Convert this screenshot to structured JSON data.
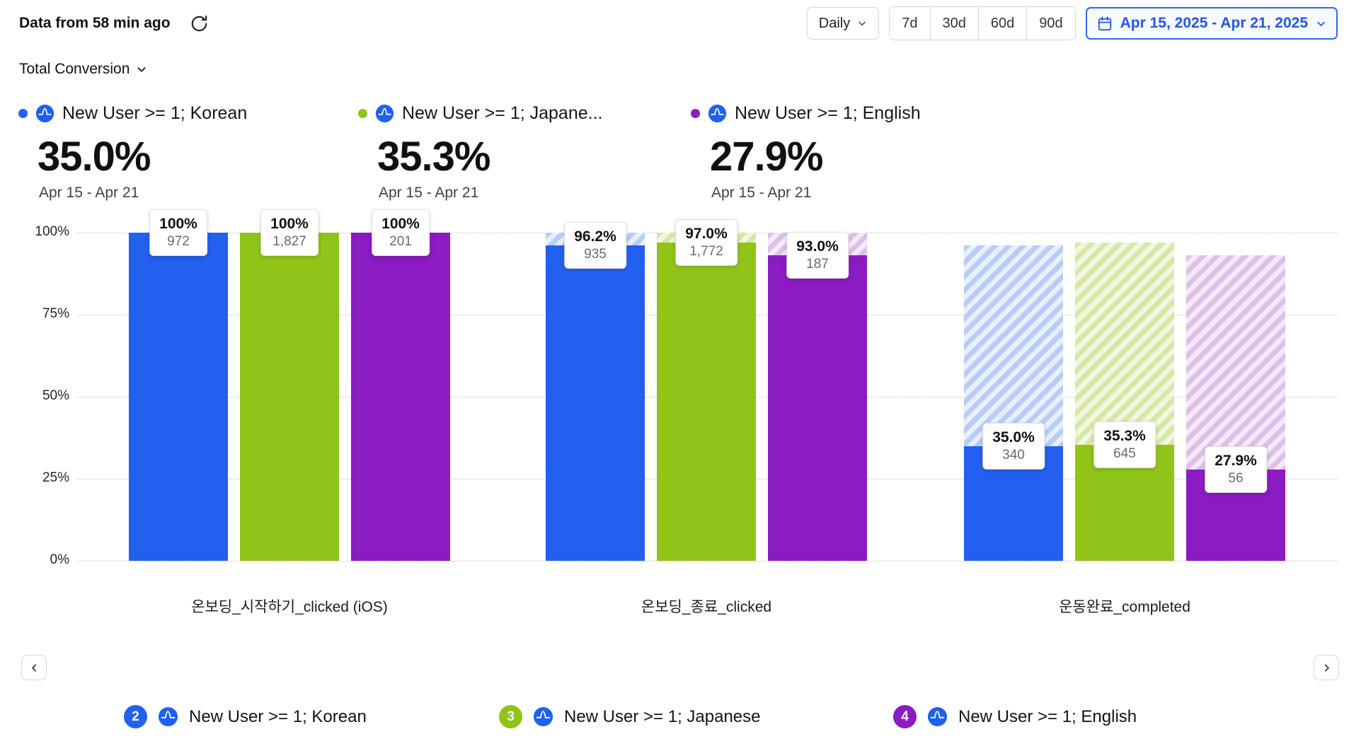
{
  "header": {
    "freshness": "Data from 58 min ago",
    "granularity": "Daily",
    "quick_ranges": [
      "7d",
      "30d",
      "60d",
      "90d"
    ],
    "date_range": "Apr 15, 2025 - Apr 21, 2025"
  },
  "metric_selector": {
    "label": "Total Conversion"
  },
  "series_summary": [
    {
      "name": "New User >= 1; Korean",
      "value": "35.0%",
      "range": "Apr 15 - Apr 21",
      "color": "#2360f0"
    },
    {
      "name": "New User >= 1; Japane...",
      "value": "35.3%",
      "range": "Apr 15 - Apr 21",
      "color": "#90c418"
    },
    {
      "name": "New User >= 1; English",
      "value": "27.9%",
      "range": "Apr 15 - Apr 21",
      "color": "#8b1bc2"
    }
  ],
  "chart_data": {
    "type": "bar",
    "subtype": "funnel-conversion",
    "title": "Total Conversion",
    "categories": [
      "온보딩_시작하기_clicked (iOS)",
      "온보딩_종료_clicked",
      "운동완료_completed"
    ],
    "ylim": [
      0,
      100
    ],
    "ytick_labels": [
      "0%",
      "25%",
      "50%",
      "75%",
      "100%"
    ],
    "grid": "dotted-horizontal",
    "legend_position": "top",
    "series": [
      {
        "name": "New User >= 1; Korean",
        "color": "#2360f0",
        "hatch_colors": [
          "#b7ccf9",
          "#e9effd"
        ],
        "pct": [
          100,
          96.2,
          35.0
        ],
        "counts": [
          972,
          935,
          340
        ],
        "pct_labels": [
          "100%",
          "96.2%",
          "35.0%"
        ],
        "count_labels": [
          "972",
          "935",
          "340"
        ]
      },
      {
        "name": "New User >= 1; Japanese",
        "color": "#90c418",
        "hatch_colors": [
          "#d6e8a6",
          "#f1f7de"
        ],
        "pct": [
          100,
          97.0,
          35.3
        ],
        "counts": [
          1827,
          1772,
          645
        ],
        "pct_labels": [
          "100%",
          "97.0%",
          "35.3%"
        ],
        "count_labels": [
          "1,827",
          "1,772",
          "645"
        ]
      },
      {
        "name": "New User >= 1; English",
        "color": "#8b1bc2",
        "hatch_colors": [
          "#dcc0ea",
          "#f4e9f9"
        ],
        "pct": [
          100,
          93.0,
          27.9
        ],
        "counts": [
          201,
          187,
          56
        ],
        "pct_labels": [
          "100%",
          "93.0%",
          "27.9%"
        ],
        "count_labels": [
          "201",
          "187",
          "56"
        ]
      }
    ]
  },
  "bottom_legend": [
    {
      "index": "2",
      "name": "New User >= 1; Korean",
      "color": "#2360f0"
    },
    {
      "index": "3",
      "name": "New User >= 1; Japanese",
      "color": "#90c418"
    },
    {
      "index": "4",
      "name": "New User >= 1; English",
      "color": "#8b1bc2"
    }
  ]
}
